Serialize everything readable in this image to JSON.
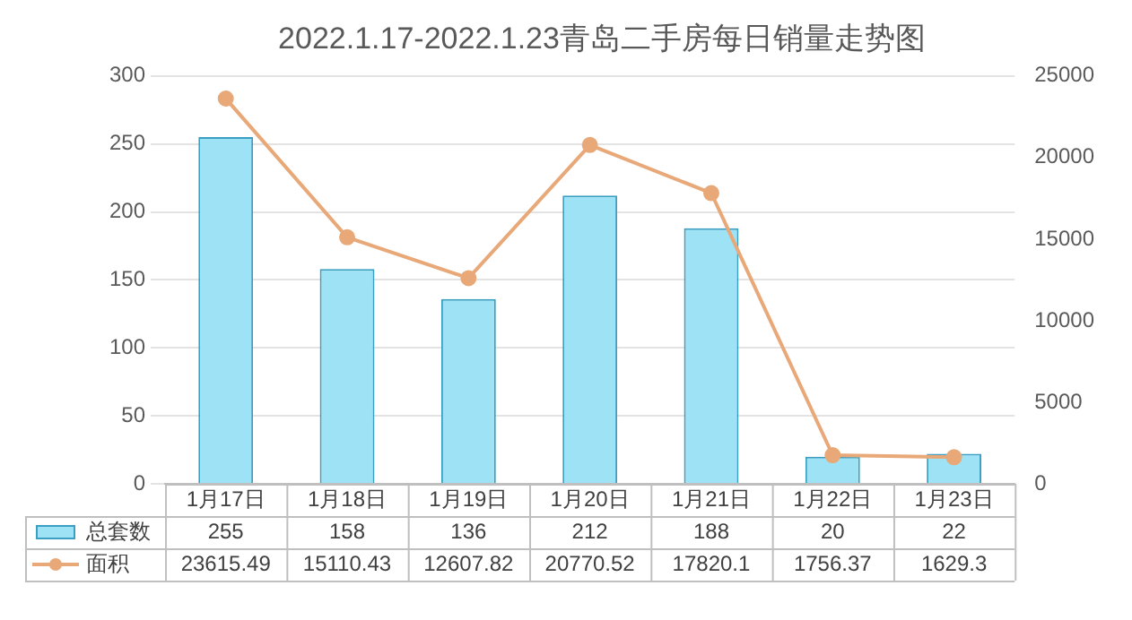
{
  "chart_data": {
    "type": "bar",
    "title": "2022.1.17-2022.1.23青岛二手房每日销量走势图",
    "categories": [
      "1月17日",
      "1月18日",
      "1月19日",
      "1月20日",
      "1月21日",
      "1月22日",
      "1月23日"
    ],
    "series": [
      {
        "name": "总套数",
        "color": "#9ee3f5",
        "values": [
          255,
          158,
          136,
          212,
          188,
          20,
          22
        ]
      },
      {
        "name": "面积",
        "type": "line",
        "axis": "y2",
        "color": "#e8a878",
        "values": [
          23615.49,
          15110.43,
          12607.82,
          20770.52,
          17820.1,
          1756.37,
          1629.3
        ]
      }
    ],
    "ylim": [
      0,
      300
    ],
    "yticks": [
      0,
      50,
      100,
      150,
      200,
      250,
      300
    ],
    "y2lim": [
      0,
      25000
    ],
    "y2ticks": [
      0,
      5000,
      10000,
      15000,
      20000,
      25000
    ],
    "grid": "y",
    "legend": "bottom",
    "data_labels": true,
    "marker": "circle"
  }
}
